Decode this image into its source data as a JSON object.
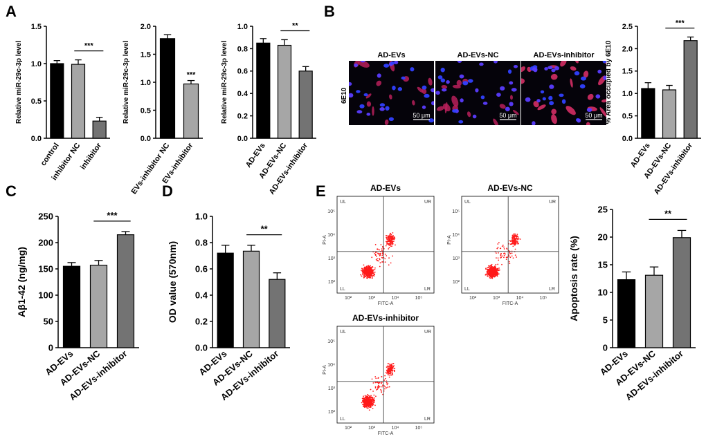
{
  "panels": {
    "A": "A",
    "B": "B",
    "C": "C",
    "D": "D",
    "E": "E"
  },
  "micrographs": {
    "row_label": "6E10",
    "titles": [
      "AD-EVs",
      "AD-EVs-NC",
      "AD-EVs-inhibitor"
    ],
    "scale_bar": "50 μm"
  },
  "flow": {
    "titles": [
      "AD-EVs",
      "AD-EVs-NC",
      "AD-EVs-inhibitor"
    ],
    "x_axis": "FITC-A",
    "y_axis": "PI-A",
    "quadrants": [
      "UL",
      "UR",
      "LL",
      "LR"
    ],
    "ticks": [
      "10²",
      "10³",
      "10⁴",
      "10⁵"
    ],
    "dot_color": "#ff1a1a"
  },
  "colors": {
    "black": "#000000",
    "light_gray": "#a6a6a6",
    "dark_gray": "#737373"
  },
  "chart_data": [
    {
      "id": "A1",
      "type": "bar",
      "categories": [
        "control",
        "inhibitor NC",
        "inhibitor"
      ],
      "values": [
        1.0,
        0.99,
        0.23
      ],
      "errors": [
        0.04,
        0.06,
        0.05
      ],
      "colors": [
        "#000000",
        "#a6a6a6",
        "#737373"
      ],
      "ylabel": "Relative miR-29c-3p level",
      "ylim": [
        0,
        1.5
      ],
      "yticks": [
        "0.0",
        "0.5",
        "1.0",
        "1.5"
      ],
      "significance": [
        {
          "from": 1,
          "to": 2,
          "label": "***"
        }
      ]
    },
    {
      "id": "A2",
      "type": "bar",
      "categories": [
        "EVs-inhibitor NC",
        "EVs-inhibitor"
      ],
      "values": [
        1.78,
        0.97
      ],
      "errors": [
        0.07,
        0.06
      ],
      "colors": [
        "#000000",
        "#a6a6a6"
      ],
      "ylabel": "Relative miR-29c-3p level",
      "ylim": [
        0,
        2.0
      ],
      "yticks": [
        "0.0",
        "0.5",
        "1.0",
        "1.5",
        "2.0"
      ],
      "significance": [
        {
          "bar": 1,
          "label": "***"
        }
      ]
    },
    {
      "id": "A3",
      "type": "bar",
      "categories": [
        "AD-EVs",
        "AD-EVs-NC",
        "AD-EVs-inhibitor"
      ],
      "values": [
        0.85,
        0.83,
        0.6
      ],
      "errors": [
        0.04,
        0.05,
        0.04
      ],
      "colors": [
        "#000000",
        "#a6a6a6",
        "#737373"
      ],
      "ylabel": "Relative miR-29c-3p level",
      "ylim": [
        0,
        1.0
      ],
      "yticks": [
        "0.0",
        "0.2",
        "0.4",
        "0.6",
        "0.8",
        "1.0"
      ],
      "significance": [
        {
          "from": 1,
          "to": 2,
          "label": "**"
        }
      ]
    },
    {
      "id": "B",
      "type": "bar",
      "categories": [
        "AD-EVs",
        "AD-EVs-NC",
        "AD-EVs-inhibitor"
      ],
      "values": [
        1.11,
        1.08,
        2.18
      ],
      "errors": [
        0.13,
        0.1,
        0.08
      ],
      "colors": [
        "#000000",
        "#a6a6a6",
        "#737373"
      ],
      "ylabel": "% Area occupied by 6E10",
      "ylim": [
        0,
        2.5
      ],
      "yticks": [
        "0.0",
        "0.5",
        "1.0",
        "1.5",
        "2.0",
        "2.5"
      ],
      "significance": [
        {
          "from": 1,
          "to": 2,
          "label": "***"
        }
      ]
    },
    {
      "id": "C",
      "type": "bar",
      "categories": [
        "AD-EVs",
        "AD-EVs-NC",
        "AD-EVs-inhibitor"
      ],
      "values": [
        155,
        157,
        215
      ],
      "errors": [
        7,
        9,
        6
      ],
      "colors": [
        "#000000",
        "#a6a6a6",
        "#737373"
      ],
      "ylabel": "Aβ1-42 (ng/mg)",
      "ylim": [
        0,
        250
      ],
      "yticks": [
        "0",
        "50",
        "100",
        "150",
        "200",
        "250"
      ],
      "significance": [
        {
          "from": 1,
          "to": 2,
          "label": "***"
        }
      ]
    },
    {
      "id": "D",
      "type": "bar",
      "categories": [
        "AD-EVs",
        "AD-EVs-NC",
        "AD-EVs-inhibitor"
      ],
      "values": [
        0.72,
        0.735,
        0.52
      ],
      "errors": [
        0.06,
        0.045,
        0.05
      ],
      "colors": [
        "#000000",
        "#a6a6a6",
        "#737373"
      ],
      "ylabel": "OD value (570nm)",
      "ylim": [
        0,
        1.0
      ],
      "yticks": [
        "0.0",
        "0.2",
        "0.4",
        "0.6",
        "0.8",
        "1.0"
      ],
      "significance": [
        {
          "from": 1,
          "to": 2,
          "label": "**"
        }
      ]
    },
    {
      "id": "E",
      "type": "bar",
      "categories": [
        "AD-EVs",
        "AD-EVs-NC",
        "AD-EVs-inhibitor"
      ],
      "values": [
        12.3,
        13.1,
        19.9
      ],
      "errors": [
        1.4,
        1.5,
        1.3
      ],
      "colors": [
        "#000000",
        "#a6a6a6",
        "#737373"
      ],
      "ylabel": "Apoptosis rate (%)",
      "ylim": [
        0,
        25
      ],
      "yticks": [
        "0",
        "5",
        "10",
        "15",
        "20",
        "25"
      ],
      "significance": [
        {
          "from": 1,
          "to": 2,
          "label": "**"
        }
      ]
    }
  ]
}
